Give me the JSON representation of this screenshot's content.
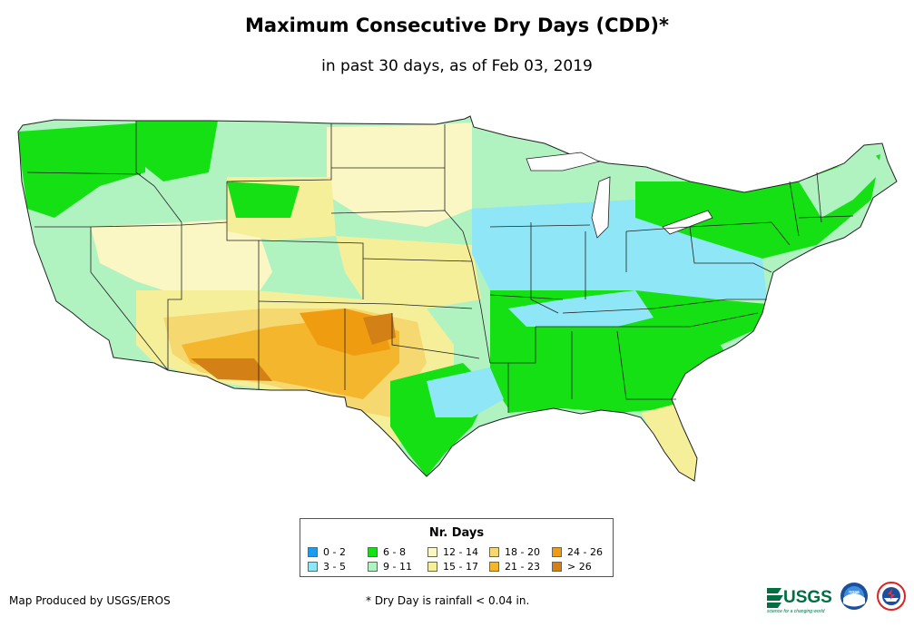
{
  "header": {
    "title": "Maximum Consecutive Dry Days (CDD)*",
    "subtitle": "in past 30 days, as of Feb 03, 2019"
  },
  "legend": {
    "title": "Nr. Days",
    "items": [
      {
        "label": "0 - 2",
        "color": "#1a9cf0"
      },
      {
        "label": "3 - 5",
        "color": "#8ee6f7"
      },
      {
        "label": "6 - 8",
        "color": "#14e014"
      },
      {
        "label": "9 - 11",
        "color": "#b0f2c0"
      },
      {
        "label": "12 - 14",
        "color": "#fbf7c4"
      },
      {
        "label": "15 - 17",
        "color": "#f6ef9a"
      },
      {
        "label": "18 - 20",
        "color": "#f5d870"
      },
      {
        "label": "21 - 23",
        "color": "#f3b62d"
      },
      {
        "label": "24 - 26",
        "color": "#f09c10"
      },
      {
        "label": "> 26",
        "color": "#d38016"
      }
    ]
  },
  "footer": {
    "credit": "Map Produced by USGS/EROS",
    "footnote": "* Dry Day is rainfall < 0.04 in.",
    "usgs_logo": "USGS",
    "usgs_tagline": "science for a changing world",
    "noaa_logo": "noaa"
  }
}
